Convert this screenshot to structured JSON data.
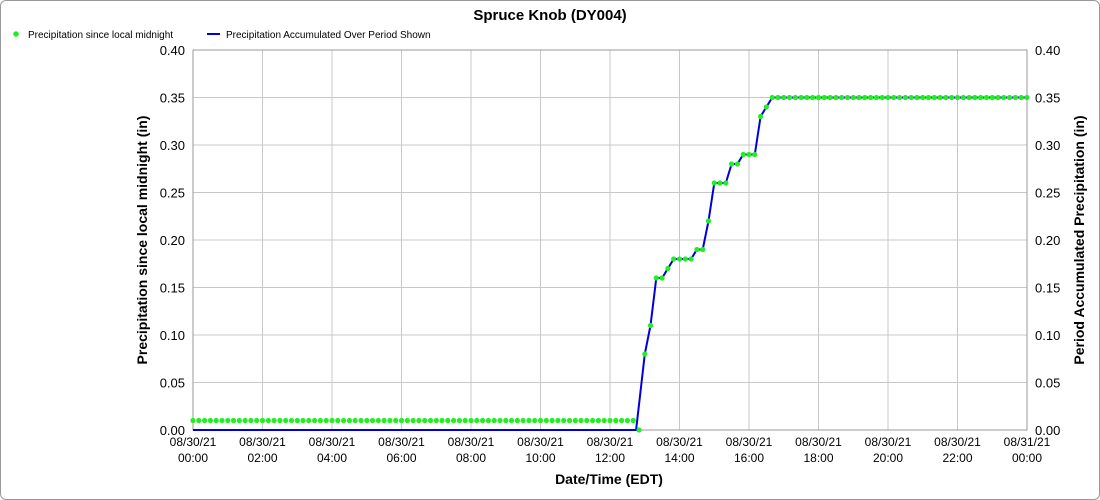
{
  "chart_data": {
    "type": "line",
    "title": "Spruce Knob (DY004)",
    "xlabel": "Date/Time (EDT)",
    "ylabel": "Precipitation since local midnight (in)",
    "y2label": "Period Accumulated Precipitation (in)",
    "ylim": [
      0,
      0.4
    ],
    "yticks": [
      "0.00",
      "0.05",
      "0.10",
      "0.15",
      "0.20",
      "0.25",
      "0.30",
      "0.35",
      "0.40"
    ],
    "x_range": [
      "08/30/21 00:00",
      "08/31/21 00:00"
    ],
    "xticks": [
      {
        "date": "08/30/21",
        "time": "00:00"
      },
      {
        "date": "08/30/21",
        "time": "02:00"
      },
      {
        "date": "08/30/21",
        "time": "04:00"
      },
      {
        "date": "08/30/21",
        "time": "06:00"
      },
      {
        "date": "08/30/21",
        "time": "08:00"
      },
      {
        "date": "08/30/21",
        "time": "10:00"
      },
      {
        "date": "08/30/21",
        "time": "12:00"
      },
      {
        "date": "08/30/21",
        "time": "14:00"
      },
      {
        "date": "08/30/21",
        "time": "16:00"
      },
      {
        "date": "08/30/21",
        "time": "18:00"
      },
      {
        "date": "08/30/21",
        "time": "20:00"
      },
      {
        "date": "08/30/21",
        "time": "22:00"
      },
      {
        "date": "08/31/21",
        "time": "00:00"
      }
    ],
    "grid": true,
    "legend_position": "top-left",
    "series": [
      {
        "name": "Precipitation since local midnight",
        "style": "markers",
        "color": "#22ee22",
        "points": [
          [
            "00:00",
            0.01
          ],
          [
            "12:45",
            0.0
          ],
          [
            "13:00",
            0.08
          ],
          [
            "13:10",
            0.11
          ],
          [
            "13:20",
            0.16
          ],
          [
            "13:30",
            0.16
          ],
          [
            "13:40",
            0.17
          ],
          [
            "13:50",
            0.18
          ],
          [
            "14:00",
            0.18
          ],
          [
            "14:10",
            0.18
          ],
          [
            "14:20",
            0.18
          ],
          [
            "14:30",
            0.19
          ],
          [
            "14:40",
            0.19
          ],
          [
            "14:50",
            0.22
          ],
          [
            "15:00",
            0.26
          ],
          [
            "15:10",
            0.26
          ],
          [
            "15:20",
            0.26
          ],
          [
            "15:30",
            0.28
          ],
          [
            "15:40",
            0.28
          ],
          [
            "15:50",
            0.29
          ],
          [
            "16:00",
            0.29
          ],
          [
            "16:10",
            0.29
          ],
          [
            "16:20",
            0.33
          ],
          [
            "16:30",
            0.34
          ],
          [
            "16:40",
            0.35
          ],
          [
            "24:00",
            0.35
          ]
        ]
      },
      {
        "name": "Precipitation Accumulated Over Period Shown",
        "style": "line",
        "color": "#0000dd",
        "points": [
          [
            "00:00",
            0.0
          ],
          [
            "12:45",
            0.0
          ],
          [
            "13:00",
            0.08
          ],
          [
            "13:10",
            0.11
          ],
          [
            "13:20",
            0.16
          ],
          [
            "13:30",
            0.16
          ],
          [
            "13:40",
            0.17
          ],
          [
            "13:50",
            0.18
          ],
          [
            "14:00",
            0.18
          ],
          [
            "14:10",
            0.18
          ],
          [
            "14:20",
            0.18
          ],
          [
            "14:30",
            0.19
          ],
          [
            "14:40",
            0.19
          ],
          [
            "14:50",
            0.22
          ],
          [
            "15:00",
            0.26
          ],
          [
            "15:10",
            0.26
          ],
          [
            "15:20",
            0.26
          ],
          [
            "15:30",
            0.28
          ],
          [
            "15:40",
            0.28
          ],
          [
            "15:50",
            0.29
          ],
          [
            "16:00",
            0.29
          ],
          [
            "16:10",
            0.29
          ],
          [
            "16:20",
            0.33
          ],
          [
            "16:30",
            0.34
          ],
          [
            "16:40",
            0.35
          ],
          [
            "24:00",
            0.35
          ]
        ]
      }
    ]
  }
}
